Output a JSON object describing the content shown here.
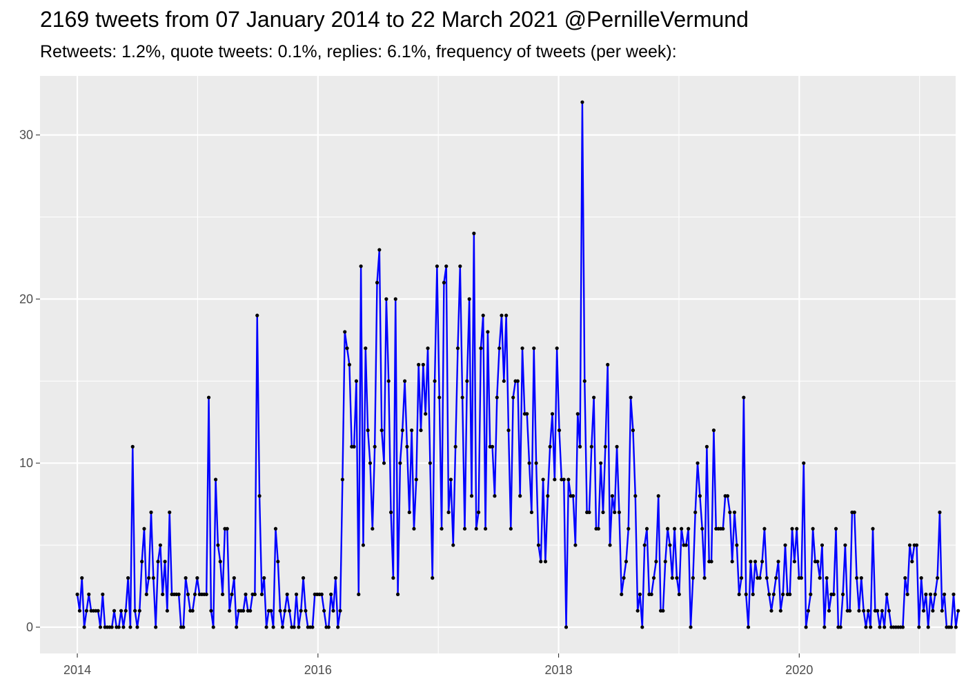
{
  "title": "2169 tweets from 07 January 2014 to 22 March 2021 @PernilleVermund",
  "subtitle": "Retweets: 1.2%, quote tweets: 0.1%, replies: 6.1%, frequency of tweets (per week):",
  "colors": {
    "panel": "#ebebeb",
    "grid": "#ffffff",
    "line": "#0000ff",
    "point": "#000000",
    "tick_text": "#4d4d4d"
  },
  "chart_data": {
    "type": "line",
    "title": "2169 tweets from 07 January 2014 to 22 March 2021 @PernilleVermund",
    "subtitle": "Retweets: 1.2%, quote tweets: 0.1%, replies: 6.1%, frequency of tweets (per week):",
    "xlabel": "",
    "ylabel": "",
    "x_unit": "year",
    "xlim": [
      2013.69,
      2021.3
    ],
    "ylim": [
      -1.6,
      33.6
    ],
    "x_ticks": [
      2014,
      2016,
      2018,
      2020
    ],
    "x_tick_labels": [
      "2014",
      "2016",
      "2018",
      "2020"
    ],
    "y_ticks": [
      0,
      10,
      20,
      30
    ],
    "y_tick_labels": [
      "0",
      "10",
      "20",
      "30"
    ],
    "grid": true,
    "legend": "none",
    "series": [
      {
        "start_year": 2014.0,
        "step_weeks": 1,
        "values": [
          2,
          1,
          3,
          0,
          1,
          2,
          1,
          1,
          1,
          1,
          0,
          2,
          0,
          0,
          0,
          0,
          1,
          0,
          0,
          1,
          0,
          1,
          3,
          0,
          11,
          1,
          0,
          1,
          4,
          6,
          2,
          3,
          7,
          3,
          0,
          4,
          5,
          2,
          4,
          1,
          7,
          2,
          2,
          2,
          2,
          0,
          0,
          3,
          2,
          1,
          1,
          2,
          3,
          2,
          2,
          2,
          2,
          14,
          1,
          0,
          9,
          5,
          4,
          2,
          6,
          6,
          1,
          2,
          3,
          0,
          1,
          1,
          1,
          2,
          1,
          1,
          2,
          2,
          19,
          8,
          2,
          3,
          0,
          1,
          1,
          0,
          6,
          4,
          1,
          0,
          1,
          2,
          1,
          0,
          0,
          2,
          0,
          1,
          3,
          1,
          0,
          0,
          0,
          2,
          2,
          2,
          2,
          1,
          0,
          0,
          2,
          1,
          3,
          0,
          1,
          9,
          18,
          17,
          16,
          11,
          11,
          15,
          2,
          22,
          5,
          17,
          12,
          10,
          6,
          11,
          21,
          23,
          12,
          10,
          20,
          15,
          7,
          3,
          20,
          2,
          10,
          12,
          15,
          11,
          7,
          12,
          6,
          9,
          16,
          12,
          16,
          13,
          17,
          10,
          3,
          15,
          22,
          14,
          6,
          21,
          22,
          7,
          9,
          5,
          11,
          17,
          22,
          14,
          6,
          15,
          20,
          8,
          24,
          6,
          7,
          17,
          19,
          6,
          18,
          11,
          11,
          8,
          14,
          17,
          19,
          15,
          19,
          12,
          6,
          14,
          15,
          15,
          8,
          17,
          13,
          13,
          10,
          7,
          17,
          10,
          5,
          4,
          9,
          4,
          8,
          11,
          13,
          9,
          17,
          12,
          9,
          9,
          0,
          9,
          8,
          8,
          5,
          13,
          11,
          32,
          15,
          7,
          7,
          11,
          14,
          6,
          6,
          10,
          7,
          11,
          16,
          5,
          8,
          7,
          11,
          7,
          2,
          3,
          4,
          6,
          14,
          12,
          8,
          1,
          2,
          0,
          5,
          6,
          2,
          2,
          3,
          4,
          8,
          1,
          1,
          4,
          6,
          5,
          3,
          6,
          3,
          2,
          6,
          5,
          5,
          6,
          0,
          3,
          7,
          10,
          8,
          6,
          3,
          11,
          4,
          4,
          12,
          6,
          6,
          6,
          6,
          8,
          8,
          7,
          4,
          7,
          5,
          2,
          3,
          14,
          2,
          0,
          4,
          2,
          4,
          3,
          3,
          4,
          6,
          3,
          2,
          1,
          2,
          3,
          4,
          1,
          2,
          5,
          2,
          2,
          6,
          4,
          6,
          3,
          3,
          10,
          0,
          1,
          2,
          6,
          4,
          4,
          3,
          5,
          0,
          3,
          1,
          2,
          2,
          6,
          0,
          0,
          2,
          5,
          1,
          1,
          7,
          7,
          3,
          1,
          3,
          1,
          0,
          1,
          0,
          6,
          1,
          1,
          0,
          1,
          0,
          2,
          1,
          0,
          0,
          0,
          0,
          0,
          0,
          3,
          2,
          5,
          4,
          5,
          5,
          0,
          3,
          1,
          2,
          0,
          2,
          1,
          2,
          3,
          7,
          1,
          2,
          0,
          0,
          0,
          2,
          0,
          1
        ]
      }
    ]
  }
}
